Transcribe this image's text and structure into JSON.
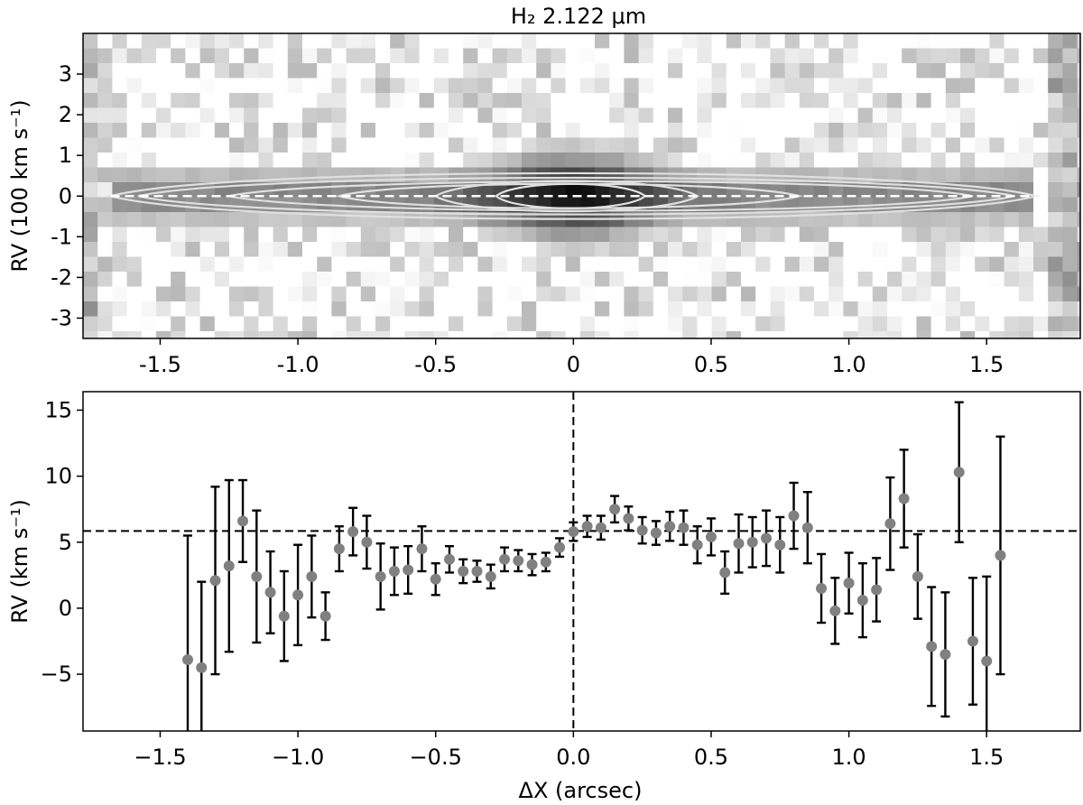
{
  "chart_data": [
    {
      "type": "heatmap",
      "title": "H₂ 2.122 μm",
      "ylabel": "RV (100 km s⁻¹)",
      "xlabel": "",
      "xlim": [
        -1.78,
        1.84
      ],
      "ylim": [
        -3.5,
        4.0
      ],
      "xticks": [
        -1.5,
        -1.0,
        -0.5,
        0,
        0.5,
        1.0,
        1.5
      ],
      "xtick_labels": [
        "-1.5",
        "-1.0",
        "-0.5",
        "0",
        "0.5",
        "1.0",
        "1.5"
      ],
      "yticks": [
        3,
        2,
        1,
        0,
        -1,
        -2,
        -3
      ],
      "ytick_labels": [
        "3",
        "2",
        "1",
        "0",
        "-1",
        "-2",
        "-3"
      ],
      "colormap": "gray_r",
      "contour_color": "#e0e0e0",
      "dashed_line_y": 0,
      "emission": {
        "center_x": 0.0,
        "center_rv": 0.0,
        "x_half_extent": 1.68,
        "rv_half_width_edge": 0.75,
        "rv_half_width_center": 1.2
      },
      "contours": [
        {
          "xmin": -1.68,
          "xmax": 1.68,
          "halfwidth": 0.75
        },
        {
          "xmin": -1.58,
          "xmax": 1.6,
          "halfwidth": 0.6
        },
        {
          "xmin": -1.25,
          "xmax": 1.45,
          "halfwidth": 0.48
        },
        {
          "xmin": -0.85,
          "xmax": 0.82,
          "halfwidth": 0.4
        },
        {
          "xmin": -0.5,
          "xmax": 0.45,
          "halfwidth": 0.5
        },
        {
          "xmin": -0.28,
          "xmax": 0.26,
          "halfwidth": 0.4
        }
      ]
    },
    {
      "type": "scatter",
      "title": "",
      "xlabel": "ΔX (arcsec)",
      "ylabel": "RV (km s⁻¹)",
      "xlim": [
        -1.78,
        1.84
      ],
      "ylim": [
        -9.3,
        16.4
      ],
      "xticks": [
        -1.5,
        -1.0,
        -0.5,
        0.0,
        0.5,
        1.0,
        1.5
      ],
      "xtick_labels": [
        "−1.5",
        "−1.0",
        "−0.5",
        "0.0",
        "0.5",
        "1.0",
        "1.5"
      ],
      "yticks": [
        15,
        10,
        5,
        0,
        -5
      ],
      "ytick_labels": [
        "15",
        "10",
        "5",
        "0",
        "−5"
      ],
      "hline_y": 5.85,
      "vline_x": 0.0,
      "marker_color": "#808080",
      "errorbar_color": "#000000",
      "x": [
        -1.4,
        -1.35,
        -1.3,
        -1.25,
        -1.2,
        -1.15,
        -1.1,
        -1.05,
        -1.0,
        -0.95,
        -0.9,
        -0.85,
        -0.8,
        -0.75,
        -0.7,
        -0.65,
        -0.6,
        -0.55,
        -0.5,
        -0.45,
        -0.4,
        -0.35,
        -0.3,
        -0.25,
        -0.2,
        -0.15,
        -0.1,
        -0.05,
        0.0,
        0.05,
        0.1,
        0.15,
        0.2,
        0.25,
        0.3,
        0.35,
        0.4,
        0.45,
        0.5,
        0.55,
        0.6,
        0.65,
        0.7,
        0.75,
        0.8,
        0.85,
        0.9,
        0.95,
        1.0,
        1.05,
        1.1,
        1.15,
        1.2,
        1.25,
        1.3,
        1.35,
        1.4,
        1.45,
        1.5,
        1.55
      ],
      "y": [
        -3.9,
        -4.5,
        2.1,
        3.2,
        6.6,
        2.4,
        1.2,
        -0.6,
        1.0,
        2.4,
        -0.6,
        4.5,
        5.8,
        5.0,
        2.4,
        2.8,
        2.9,
        4.5,
        2.2,
        3.7,
        2.8,
        2.8,
        2.4,
        3.7,
        3.6,
        3.3,
        3.5,
        4.6,
        5.8,
        6.2,
        6.1,
        7.5,
        6.8,
        5.9,
        5.7,
        6.2,
        6.1,
        4.8,
        5.4,
        2.7,
        4.9,
        5.0,
        5.3,
        4.8,
        7.0,
        6.1,
        1.5,
        -0.2,
        1.9,
        0.6,
        1.4,
        6.4,
        8.3,
        2.4,
        -2.9,
        -3.5,
        10.3,
        -2.5,
        -4.0,
        4.0
      ],
      "err": [
        9.4,
        6.5,
        7.1,
        6.5,
        3.1,
        5.0,
        3.1,
        3.4,
        3.8,
        3.1,
        1.8,
        1.7,
        1.8,
        2.0,
        2.5,
        1.8,
        1.8,
        1.7,
        1.2,
        1.0,
        0.9,
        0.8,
        0.9,
        0.9,
        0.8,
        0.8,
        0.7,
        0.7,
        0.7,
        0.8,
        0.9,
        1.0,
        0.9,
        1.0,
        0.9,
        1.1,
        1.3,
        1.4,
        1.4,
        1.6,
        2.2,
        1.9,
        2.1,
        2.1,
        2.5,
        2.7,
        2.6,
        2.5,
        2.3,
        2.8,
        2.4,
        3.5,
        3.7,
        3.2,
        4.5,
        4.7,
        5.3,
        4.8,
        6.4,
        9.0
      ]
    }
  ]
}
